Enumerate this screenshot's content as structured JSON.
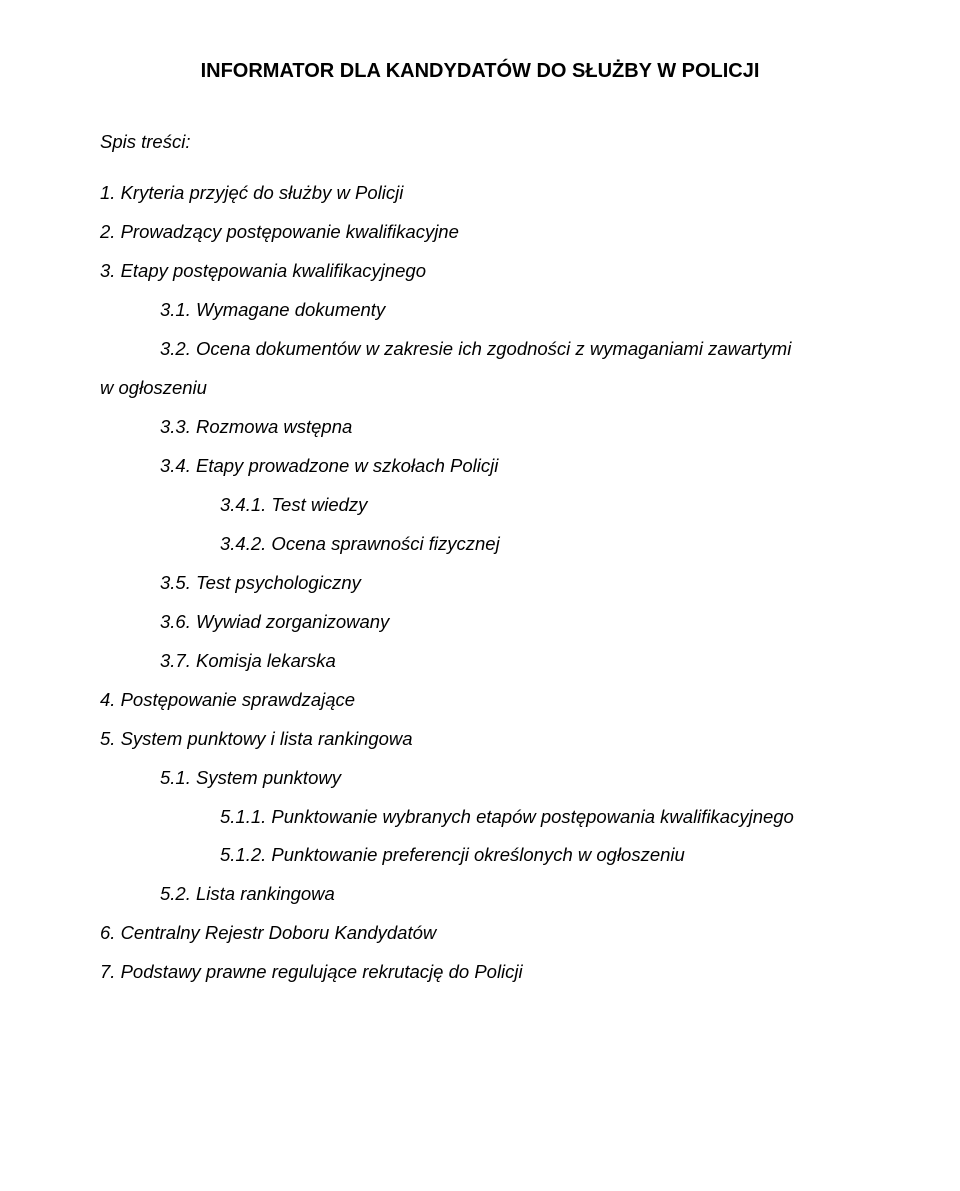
{
  "page_title": "INFORMATOR DLA KANDYDATÓW DO SŁUŻBY W POLICJI",
  "toc_label": "Spis treści:",
  "toc": [
    {
      "level": 1,
      "text": "1. Kryteria przyjęć do służby w Policji"
    },
    {
      "level": 1,
      "text": "2. Prowadzący postępowanie kwalifikacyjne"
    },
    {
      "level": 1,
      "text": "3. Etapy postępowania kwalifikacyjnego"
    },
    {
      "level": 2,
      "text": "3.1. Wymagane dokumenty"
    },
    {
      "level": 2,
      "text": "3.2. Ocena dokumentów w zakresie ich zgodności z wymaganiami zawartymi"
    },
    {
      "level": 1,
      "text": "w ogłoszeniu",
      "continuation": true
    },
    {
      "level": 2,
      "text": "3.3. Rozmowa wstępna"
    },
    {
      "level": 2,
      "text": "3.4. Etapy prowadzone w szkołach Policji"
    },
    {
      "level": 3,
      "text": "3.4.1. Test wiedzy"
    },
    {
      "level": 3,
      "text": "3.4.2. Ocena sprawności fizycznej"
    },
    {
      "level": 2,
      "text": "3.5. Test psychologiczny"
    },
    {
      "level": 2,
      "text": "3.6. Wywiad zorganizowany"
    },
    {
      "level": 2,
      "text": "3.7. Komisja lekarska"
    },
    {
      "level": 1,
      "text": "4. Postępowanie sprawdzające"
    },
    {
      "level": 1,
      "text": "5. System punktowy i lista rankingowa"
    },
    {
      "level": 2,
      "text": "5.1. System punktowy"
    },
    {
      "level": 3,
      "text": "5.1.1. Punktowanie wybranych etapów postępowania kwalifikacyjnego"
    },
    {
      "level": 3,
      "text": "5.1.2. Punktowanie preferencji określonych w ogłoszeniu"
    },
    {
      "level": 2,
      "text": "5.2. Lista rankingowa"
    },
    {
      "level": 1,
      "text": "6. Centralny Rejestr Doboru Kandydatów"
    },
    {
      "level": 1,
      "text": "7. Podstawy prawne regulujące rekrutację do Policji"
    }
  ]
}
